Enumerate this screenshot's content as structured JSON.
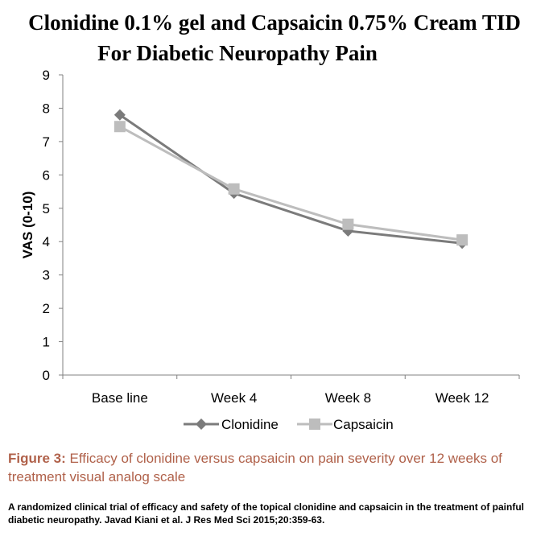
{
  "title_line1": "Clonidine 0.1% gel and Capsaicin 0.75% Cream TID",
  "title_line2": "For Diabetic Neuropathy Pain",
  "chart_data": {
    "type": "line",
    "categories": [
      "Base line",
      "Week 4",
      "Week 8",
      "Week 12"
    ],
    "series": [
      {
        "name": "Clonidine",
        "values": [
          7.8,
          5.45,
          4.32,
          3.95
        ],
        "color": "#7b7b7b",
        "marker": "diamond"
      },
      {
        "name": "Capsaicin",
        "values": [
          7.45,
          5.58,
          4.52,
          4.05
        ],
        "color": "#bdbdbd",
        "marker": "square"
      }
    ],
    "ylabel": "VAS (0-10)",
    "xlabel": "",
    "ylim": [
      0,
      9
    ],
    "yticks": [
      0,
      1,
      2,
      3,
      4,
      5,
      6,
      7,
      8,
      9
    ],
    "grid": false,
    "legend": "bottom"
  },
  "caption": {
    "label": "Figure 3:",
    "text": " Efficacy of clonidine versus capsaicin on pain severity over 12 weeks of treatment visual analog scale"
  },
  "citation": "A randomized clinical trial of efficacy and safety of the topical clonidine and capsaicin in the  treatment of painful diabetic neuropathy. Javad Kiani et al. J Res Med Sci 2015;20:359-63."
}
